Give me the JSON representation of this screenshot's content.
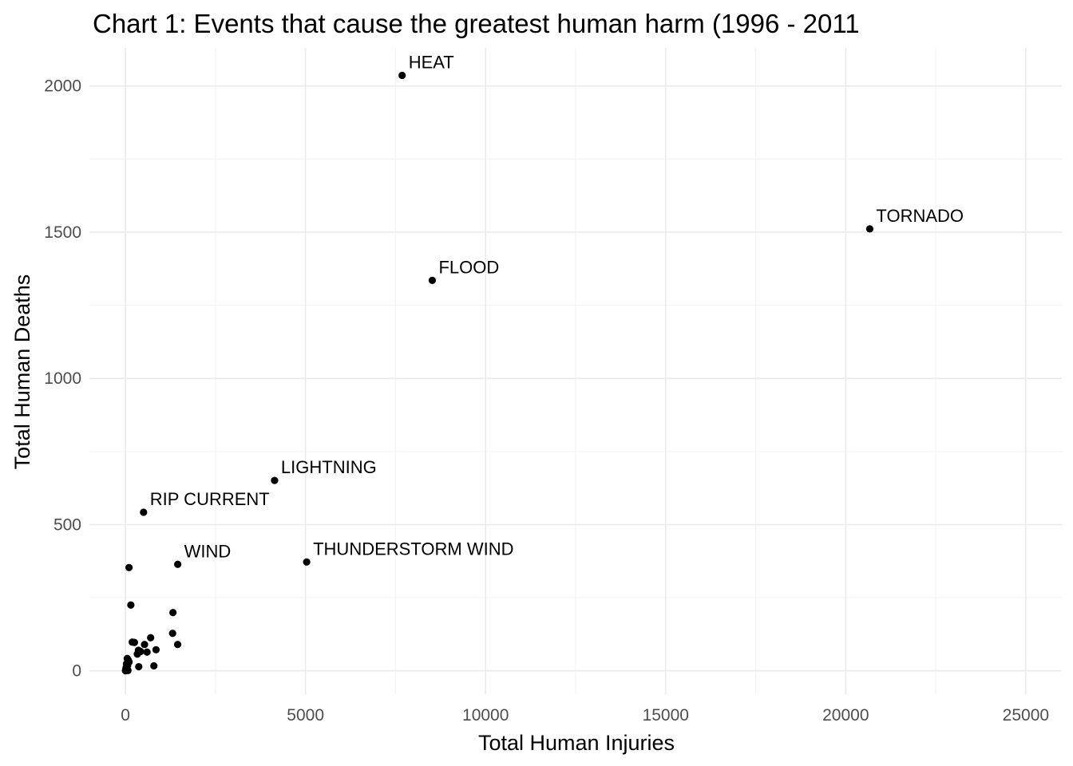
{
  "chart_data": {
    "type": "scatter",
    "title": "Chart 1: Events that cause the greatest human harm (1996 - 2011",
    "xlabel": "Total Human Injuries",
    "ylabel": "Total Human Deaths",
    "xlim": [
      -1000,
      26000
    ],
    "ylim": [
      -80,
      2130
    ],
    "xticks": [
      0,
      5000,
      10000,
      15000,
      20000,
      25000
    ],
    "yticks": [
      0,
      500,
      1000,
      1500,
      2000
    ],
    "grid": true,
    "legend": "none",
    "point_color": "#000000",
    "points": [
      {
        "label": "TORNADO",
        "x": 20667,
        "y": 1511
      },
      {
        "label": "HEAT",
        "x": 7683,
        "y": 2036
      },
      {
        "label": "FLOOD",
        "x": 8520,
        "y": 1335
      },
      {
        "label": "LIGHTNING",
        "x": 4141,
        "y": 651
      },
      {
        "label": "RIP CURRENT",
        "x": 503,
        "y": 542
      },
      {
        "label": "THUNDERSTORM WIND",
        "x": 5032,
        "y": 372
      },
      {
        "label": "WIND",
        "x": 1452,
        "y": 364
      },
      {
        "label": "",
        "x": 100,
        "y": 353
      },
      {
        "label": "",
        "x": 150,
        "y": 225
      },
      {
        "label": "",
        "x": 1320,
        "y": 199
      },
      {
        "label": "",
        "x": 1310,
        "y": 128
      },
      {
        "label": "",
        "x": 700,
        "y": 113
      },
      {
        "label": "",
        "x": 1450,
        "y": 90
      },
      {
        "label": "",
        "x": 190,
        "y": 98
      },
      {
        "label": "",
        "x": 250,
        "y": 97
      },
      {
        "label": "",
        "x": 530,
        "y": 90
      },
      {
        "label": "",
        "x": 850,
        "y": 72
      },
      {
        "label": "",
        "x": 360,
        "y": 70
      },
      {
        "label": "",
        "x": 420,
        "y": 66
      },
      {
        "label": "",
        "x": 330,
        "y": 57
      },
      {
        "label": "",
        "x": 600,
        "y": 64
      },
      {
        "label": "",
        "x": 790,
        "y": 17
      },
      {
        "label": "",
        "x": 370,
        "y": 14
      },
      {
        "label": "",
        "x": 50,
        "y": 42
      },
      {
        "label": "",
        "x": 80,
        "y": 36
      },
      {
        "label": "",
        "x": 100,
        "y": 30
      },
      {
        "label": "",
        "x": 30,
        "y": 24
      },
      {
        "label": "",
        "x": 60,
        "y": 18
      },
      {
        "label": "",
        "x": 20,
        "y": 11
      },
      {
        "label": "",
        "x": 10,
        "y": 6
      },
      {
        "label": "",
        "x": 40,
        "y": 4
      },
      {
        "label": "",
        "x": 5,
        "y": 2
      },
      {
        "label": "",
        "x": 15,
        "y": 1
      },
      {
        "label": "",
        "x": 2,
        "y": 0
      },
      {
        "label": "",
        "x": 70,
        "y": 1
      }
    ]
  }
}
